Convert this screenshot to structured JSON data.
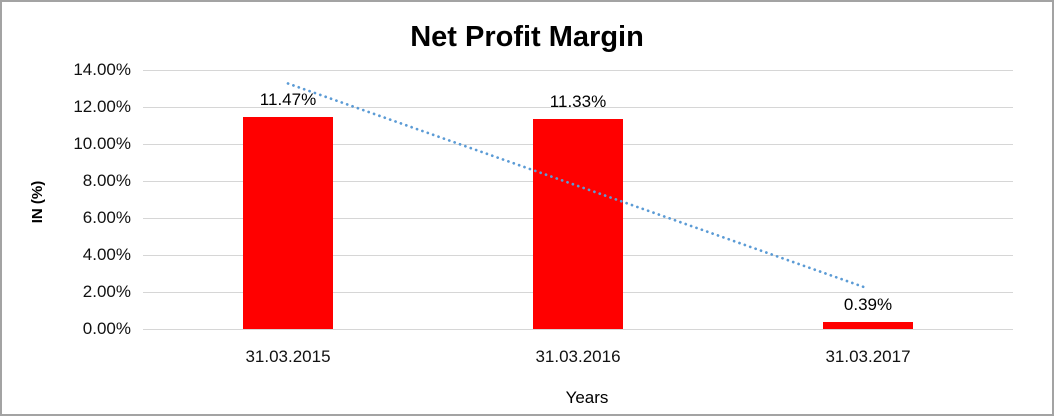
{
  "chart_data": {
    "type": "bar",
    "title": "Net Profit Margin",
    "xlabel": "Years",
    "ylabel": "IN (%)",
    "categories": [
      "31.03.2015",
      "31.03.2016",
      "31.03.2017"
    ],
    "values": [
      11.47,
      11.33,
      0.39
    ],
    "data_labels": [
      "11.47%",
      "11.33%",
      "0.39%"
    ],
    "ylim": [
      0,
      14
    ],
    "ytick_step": 2,
    "ytick_labels": [
      "0.00%",
      "2.00%",
      "4.00%",
      "6.00%",
      "8.00%",
      "10.00%",
      "12.00%",
      "14.00%"
    ],
    "grid": true,
    "legend": "none",
    "bar_color": "#ff0000",
    "gridline_color": "#d6d6d6",
    "trendline": {
      "type": "linear",
      "style": "dotted",
      "color": "#5b9bd5",
      "start_value": 13.27,
      "end_value": 2.19
    }
  }
}
